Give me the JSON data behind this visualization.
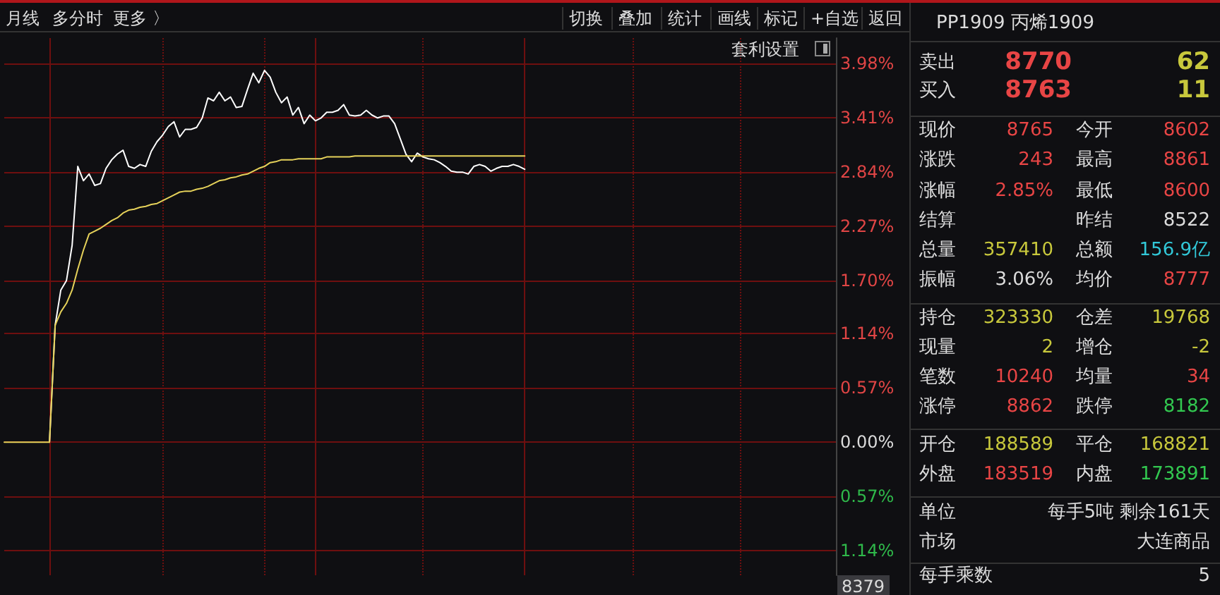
{
  "chart_data": [
    {
      "type": "line",
      "categories": [
        null,
        null,
        null,
        null,
        null,
        null,
        null,
        null,
        null,
        null,
        null,
        null,
        null,
        null,
        null,
        null,
        null,
        null,
        null,
        null,
        null,
        null,
        null,
        null,
        null,
        null,
        null,
        null,
        null,
        null,
        null,
        null,
        null,
        null,
        null,
        null,
        null,
        null,
        null,
        null,
        null,
        null,
        null,
        null,
        null,
        null,
        null,
        null,
        null,
        null,
        null,
        null,
        null,
        null,
        null,
        null,
        null,
        null,
        null,
        null,
        null,
        null,
        null,
        null,
        null,
        null,
        null,
        null,
        null,
        null,
        null,
        null,
        null,
        null,
        null,
        null,
        null,
        null,
        null,
        null,
        null,
        null,
        null,
        null,
        null,
        null,
        null,
        null,
        null,
        null,
        null,
        null,
        null,
        null,
        null,
        null,
        null,
        null,
        null,
        null,
        null,
        null,
        null,
        null,
        null,
        null,
        null,
        null,
        null,
        null,
        null,
        null,
        null,
        null,
        null,
        null,
        null,
        null,
        null,
        null,
        null,
        null,
        null,
        null,
        null,
        null,
        null,
        null,
        null,
        null,
        null,
        null,
        null,
        null,
        null,
        null,
        null,
        null,
        null,
        null,
        null,
        null,
        null,
        null,
        null,
        null,
        null,
        null
      ],
      "series": [
        {
          "color": "#ffffff",
          "values": [
            null,
            null,
            null,
            null,
            null,
            null,
            null,
            null,
            0,
            1.23,
            1.6,
            1.7,
            2.07,
            2.9,
            2.75,
            2.82,
            2.7,
            2.72,
            2.88,
            2.97,
            3.03,
            3.07,
            2.9,
            2.88,
            2.92,
            2.9,
            3.06,
            3.16,
            3.23,
            3.32,
            3.37,
            3.21,
            3.29,
            3.29,
            3.31,
            3.41,
            3.62,
            3.59,
            3.68,
            3.59,
            3.63,
            3.52,
            3.53,
            3.71,
            3.88,
            3.78,
            3.91,
            3.84,
            3.68,
            3.57,
            3.63,
            3.44,
            3.52,
            3.35,
            3.44,
            3.38,
            3.41,
            3.47,
            3.47,
            3.49,
            3.55,
            3.44,
            3.43,
            3.44,
            3.49,
            3.44,
            3.41,
            3.43,
            3.43,
            3.35,
            3.19,
            3.03,
            2.95,
            3.04,
            3,
            2.98,
            2.97,
            2.94,
            2.9,
            2.85,
            2.84,
            2.84,
            2.82,
            2.9,
            2.92,
            2.9,
            2.85,
            2.88,
            2.9,
            2.9,
            2.92,
            2.9,
            2.87,
            null,
            null,
            null,
            null,
            null,
            null,
            null,
            null,
            null,
            null,
            null,
            null,
            null,
            null,
            null,
            null,
            null,
            null,
            null,
            null,
            null,
            null,
            null,
            null,
            null,
            null,
            null,
            null,
            null,
            null,
            null,
            null,
            null,
            null,
            null,
            null,
            null,
            null,
            null,
            null,
            null,
            null,
            null,
            null,
            null,
            null,
            null,
            null,
            null,
            null,
            null,
            null,
            null,
            null,
            null
          ]
        },
        {
          "color": "#e6d25a",
          "values": [
            0,
            0,
            0,
            0,
            0,
            0,
            0,
            0,
            0,
            1.23,
            1.37,
            1.46,
            1.6,
            1.82,
            2.02,
            2.19,
            2.22,
            2.25,
            2.29,
            2.33,
            2.36,
            2.41,
            2.44,
            2.45,
            2.47,
            2.48,
            2.5,
            2.51,
            2.54,
            2.57,
            2.6,
            2.63,
            2.64,
            2.64,
            2.66,
            2.67,
            2.69,
            2.72,
            2.75,
            2.76,
            2.78,
            2.79,
            2.81,
            2.82,
            2.85,
            2.88,
            2.9,
            2.94,
            2.95,
            2.97,
            2.97,
            2.97,
            2.98,
            2.98,
            2.98,
            2.98,
            2.98,
            3,
            3,
            3,
            3,
            3,
            3.01,
            3.01,
            3.01,
            3.01,
            3.01,
            3.01,
            3.01,
            3.01,
            3.01,
            3.01,
            3.01,
            3.01,
            3.01,
            3.01,
            3.01,
            3.01,
            3.01,
            3.01,
            3.01,
            3.01,
            3.01,
            3.01,
            3.01,
            3.01,
            3.01,
            3.01,
            3.01,
            3.01,
            3.01,
            3.01,
            3.01,
            null,
            null,
            null,
            null,
            null,
            null,
            null,
            null,
            null,
            null,
            null,
            null,
            null,
            null,
            null,
            null,
            null,
            null,
            null,
            null,
            null,
            null,
            null,
            null,
            null,
            null,
            null,
            null,
            null,
            null,
            null,
            null,
            null,
            null,
            null,
            null,
            null,
            null,
            null,
            null,
            null,
            null,
            null,
            null,
            null,
            null,
            null,
            null,
            null,
            null,
            null,
            null,
            null,
            null,
            null
          ]
        }
      ],
      "ylim": [
        -1.4,
        4.25
      ],
      "yticks": [
        {
          "value": 3.98,
          "label": "3.98%"
        },
        {
          "value": 3.41,
          "label": "3.41%"
        },
        {
          "value": 2.84,
          "label": "2.84%"
        },
        {
          "value": 2.27,
          "label": "2.27%"
        },
        {
          "value": 1.7,
          "label": "1.70%"
        },
        {
          "value": 1.14,
          "label": "1.14%"
        },
        {
          "value": 0.57,
          "label": "0.57%"
        },
        {
          "value": 0,
          "label": "0.00%"
        },
        {
          "value": -0.57,
          "label": "0.57%"
        },
        {
          "value": -1.14,
          "label": "1.14%"
        }
      ],
      "grid": true,
      "marker": "none",
      "annotations": [
        "月线",
        "多分时",
        "更多 〉",
        "切换",
        "叠加",
        "统计",
        "画线",
        "标记",
        "+自选",
        "返回",
        "套利设置",
        "8379"
      ]
    },
    {
      "type": "other",
      "title": "PP1909 丙烯1909",
      "annotations": [
        "卖出",
        "8770",
        "62",
        "买入",
        "8763",
        "11",
        "现价",
        "8765",
        "今开",
        "8602",
        "涨跌",
        "243",
        "最高",
        "8861",
        "涨幅",
        "2.85%",
        "最低",
        "8600",
        "结算",
        "昨结",
        "8522",
        "总量",
        "357410",
        "总额",
        "156.9亿",
        "振幅",
        "3.06%",
        "均价",
        "8777",
        "持仓",
        "323330",
        "仓差",
        "19768",
        "现量",
        "2",
        "增仓",
        "-2",
        "笔数",
        "10240",
        "均量",
        "34",
        "涨停",
        "8862",
        "跌停",
        "8182",
        "开仓",
        "188589",
        "平仓",
        "168821",
        "外盘",
        "183519",
        "内盘",
        "173891",
        "单位",
        "每手5吨 剩余161天",
        "市场",
        "大连商品",
        "每手乘数",
        "5"
      ],
      "colors": [
        "#dcdcdc",
        "#e84545",
        "#c8c83c",
        "#dcdcdc",
        "#e84545",
        "#c8c83c",
        "#dcdcdc",
        "#e84545",
        "#dcdcdc",
        "#e84545",
        "#dcdcdc",
        "#e84545",
        "#dcdcdc",
        "#e84545",
        "#dcdcdc",
        "#e84545",
        "#dcdcdc",
        "#e84545",
        "#dcdcdc",
        "#dcdcdc",
        "#dcdcdc",
        "#dcdcdc",
        "#c8c83c",
        "#dcdcdc",
        "#32c8d8",
        "#dcdcdc",
        "#dcdcdc",
        "#dcdcdc",
        "#e84545",
        "#dcdcdc",
        "#c8c83c",
        "#dcdcdc",
        "#c8c83c",
        "#dcdcdc",
        "#c8c83c",
        "#dcdcdc",
        "#c8c83c",
        "#dcdcdc",
        "#e84545",
        "#dcdcdc",
        "#e84545",
        "#dcdcdc",
        "#e84545",
        "#dcdcdc",
        "#32c850",
        "#dcdcdc",
        "#c8c83c",
        "#dcdcdc",
        "#c8c83c",
        "#dcdcdc",
        "#e84545",
        "#dcdcdc",
        "#32c850",
        "#dcdcdc",
        "#dcdcdc",
        "#dcdcdc",
        "#dcdcdc",
        "#dcdcdc",
        "#dcdcdc"
      ]
    }
  ]
}
